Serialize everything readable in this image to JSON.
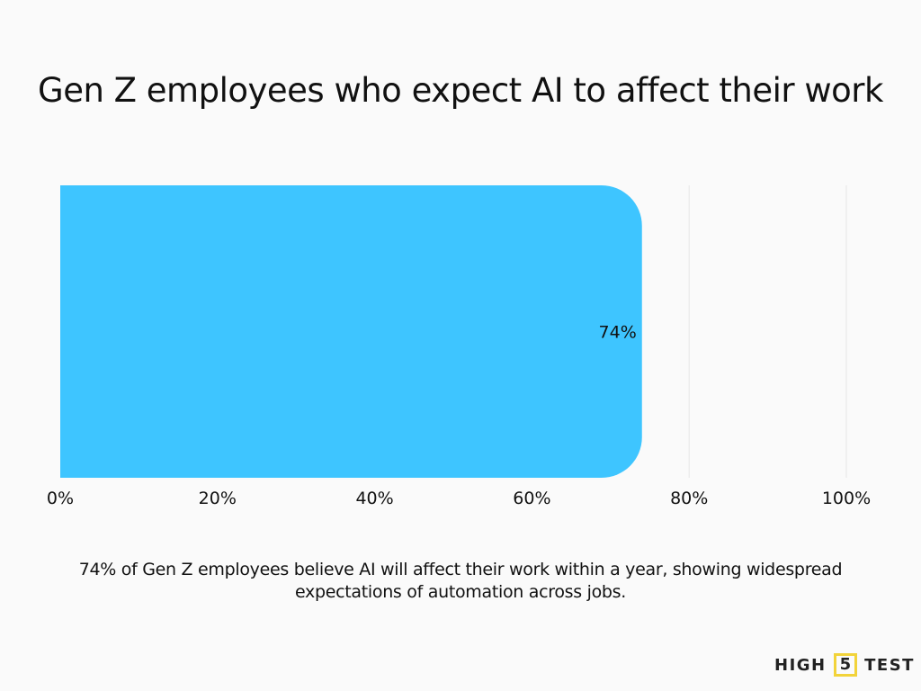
{
  "title": "Gen Z employees who expect AI to affect their work",
  "caption": "74% of Gen Z employees believe AI will affect their work within a year, showing widespread expectations of automation across jobs.",
  "logo": {
    "left": "HIGH",
    "mid": "5",
    "right": "TEST"
  },
  "chart_data": {
    "type": "bar",
    "orientation": "horizontal",
    "title": "Gen Z employees who expect AI to affect their work",
    "categories": [
      ""
    ],
    "values": [
      74
    ],
    "data_labels": [
      "74%"
    ],
    "xlim": [
      0,
      100
    ],
    "x_ticks": [
      0,
      20,
      40,
      60,
      80,
      100
    ],
    "x_tick_labels": [
      "0%",
      "20%",
      "40%",
      "60%",
      "80%",
      "100%"
    ],
    "grid": true,
    "bar_color": "#3ec5ff"
  }
}
